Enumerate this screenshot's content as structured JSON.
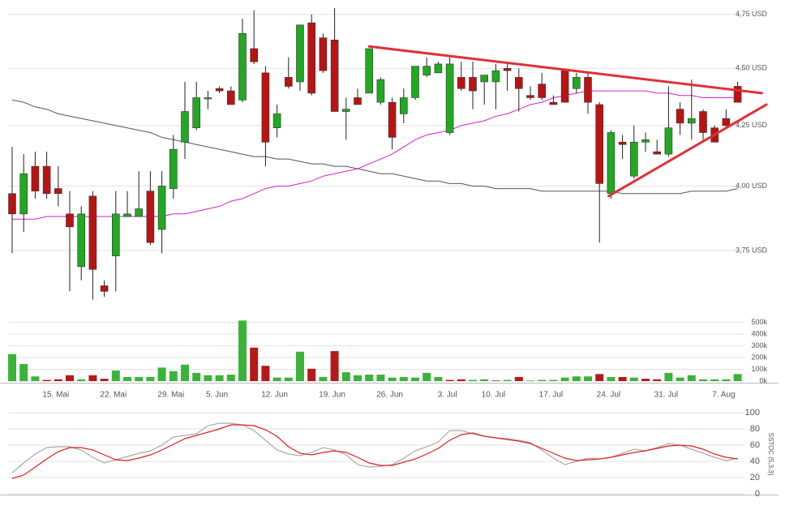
{
  "chart_data": [
    {
      "type": "candlestick",
      "log_scale": true,
      "grid": true,
      "ylim": [
        3.54,
        4.78
      ],
      "yticks": [
        {
          "value": 3.75,
          "label": "3,75 USD"
        },
        {
          "value": 4.0,
          "label": "4,00 USD"
        },
        {
          "value": 4.25,
          "label": "4,25 USD"
        },
        {
          "value": 4.5,
          "label": "4,50 USD"
        },
        {
          "value": 4.75,
          "label": "4,75 USD"
        }
      ],
      "up_color": "#22a822",
      "down_color": "#b81414",
      "open": [
        3.97,
        3.89,
        4.08,
        4.08,
        3.99,
        3.89,
        3.69,
        3.96,
        3.62,
        3.73,
        3.88,
        3.88,
        3.98,
        3.83,
        3.99,
        4.18,
        4.24,
        4.37,
        4.41,
        4.4,
        4.36,
        4.59,
        4.48,
        4.24,
        4.46,
        4.44,
        4.71,
        4.64,
        4.63,
        4.31,
        4.37,
        4.39,
        4.35,
        4.35,
        4.3,
        4.37,
        4.47,
        4.48,
        4.22,
        4.46,
        4.46,
        4.44,
        4.44,
        4.5,
        4.46,
        4.38,
        4.43,
        4.35,
        4.49,
        4.41,
        4.46,
        4.34,
        3.97,
        4.18,
        4.04,
        4.18,
        4.14,
        4.13,
        4.32,
        4.26,
        4.31,
        4.24,
        4.28,
        4.42
      ],
      "high": [
        4.16,
        4.13,
        4.14,
        4.14,
        4.08,
        3.98,
        3.92,
        3.98,
        3.64,
        3.98,
        3.98,
        4.06,
        4.06,
        4.06,
        4.21,
        4.44,
        4.44,
        4.4,
        4.42,
        4.42,
        4.73,
        4.77,
        4.51,
        4.34,
        4.55,
        4.7,
        4.75,
        4.66,
        4.78,
        4.37,
        4.41,
        4.59,
        4.46,
        4.37,
        4.41,
        4.51,
        4.55,
        4.53,
        4.55,
        4.53,
        4.53,
        4.47,
        4.52,
        4.52,
        4.5,
        4.42,
        4.48,
        4.38,
        4.5,
        4.48,
        4.48,
        4.35,
        4.23,
        4.21,
        4.25,
        4.22,
        4.19,
        4.42,
        4.35,
        4.45,
        4.32,
        4.25,
        4.32,
        4.44
      ],
      "low": [
        3.74,
        3.82,
        3.95,
        3.95,
        3.92,
        3.6,
        3.64,
        3.57,
        3.58,
        3.6,
        3.88,
        3.88,
        3.77,
        3.74,
        3.95,
        4.11,
        4.23,
        4.32,
        4.39,
        4.34,
        4.35,
        4.52,
        4.08,
        4.2,
        4.41,
        4.4,
        4.38,
        4.48,
        4.31,
        4.19,
        4.34,
        4.39,
        4.34,
        4.15,
        4.26,
        4.36,
        4.46,
        4.48,
        4.21,
        4.4,
        4.32,
        4.34,
        4.32,
        4.4,
        4.31,
        4.36,
        4.36,
        4.34,
        4.35,
        4.39,
        4.3,
        3.78,
        3.95,
        4.11,
        4.03,
        4.14,
        4.13,
        4.12,
        4.21,
        4.19,
        4.19,
        4.19,
        4.24,
        4.36
      ],
      "close": [
        3.89,
        4.05,
        3.98,
        3.97,
        3.97,
        3.84,
        3.89,
        3.68,
        3.6,
        3.89,
        3.89,
        3.91,
        3.78,
        4.0,
        4.15,
        4.31,
        4.37,
        4.37,
        4.4,
        4.34,
        4.66,
        4.53,
        4.18,
        4.3,
        4.42,
        4.7,
        4.39,
        4.49,
        4.31,
        4.32,
        4.34,
        4.59,
        4.45,
        4.2,
        4.37,
        4.51,
        4.51,
        4.52,
        4.52,
        4.41,
        4.4,
        4.47,
        4.49,
        4.49,
        4.41,
        4.37,
        4.37,
        4.34,
        4.35,
        4.46,
        4.35,
        4.01,
        4.22,
        4.17,
        4.18,
        4.19,
        4.13,
        4.24,
        4.26,
        4.28,
        4.22,
        4.18,
        4.25,
        4.35
      ],
      "series": [
        {
          "color": "#555555",
          "values": [
            4.36,
            4.35,
            4.33,
            4.32,
            4.3,
            4.29,
            4.28,
            4.27,
            4.26,
            4.25,
            4.24,
            4.23,
            4.22,
            4.2,
            4.19,
            4.18,
            4.17,
            4.16,
            4.15,
            4.14,
            4.13,
            4.12,
            4.12,
            4.11,
            4.11,
            4.1,
            4.09,
            4.09,
            4.08,
            4.08,
            4.07,
            4.06,
            4.05,
            4.05,
            4.04,
            4.03,
            4.02,
            4.02,
            4.01,
            4.01,
            4.0,
            4.0,
            3.99,
            3.99,
            3.99,
            3.99,
            3.98,
            3.98,
            3.98,
            3.98,
            3.98,
            3.98,
            3.98,
            3.97,
            3.97,
            3.97,
            3.97,
            3.97,
            3.97,
            3.98,
            3.98,
            3.98,
            3.98,
            3.99
          ]
        },
        {
          "color": "#d020d0",
          "values": [
            3.87,
            3.87,
            3.87,
            3.88,
            3.88,
            3.88,
            3.88,
            3.88,
            3.88,
            3.88,
            3.88,
            3.88,
            3.88,
            3.88,
            3.89,
            3.89,
            3.9,
            3.91,
            3.92,
            3.94,
            3.95,
            3.97,
            3.99,
            4.0,
            4.0,
            4.01,
            4.02,
            4.04,
            4.05,
            4.06,
            4.07,
            4.09,
            4.11,
            4.13,
            4.16,
            4.19,
            4.21,
            4.22,
            4.23,
            4.25,
            4.26,
            4.27,
            4.29,
            4.3,
            4.32,
            4.34,
            4.35,
            4.37,
            4.38,
            4.39,
            4.4,
            4.4,
            4.4,
            4.4,
            4.4,
            4.4,
            4.39,
            4.39,
            4.38,
            4.38,
            4.37,
            4.37,
            4.37,
            4.37
          ]
        }
      ],
      "trendlines": [
        {
          "color": "#e0303a",
          "x": [
            31,
            65.1
          ],
          "values": [
            4.6,
            4.39
          ]
        },
        {
          "color": "#e0303a",
          "x": [
            51.8,
            65.5
          ],
          "values": [
            3.96,
            4.34
          ]
        }
      ]
    },
    {
      "type": "bar",
      "grid": true,
      "categories": [
        null,
        null,
        null,
        null,
        "15. Mai",
        null,
        null,
        null,
        null,
        "22. Mai",
        null,
        null,
        null,
        null,
        "29. Mai",
        null,
        null,
        null,
        "5. Jun",
        null,
        null,
        null,
        null,
        "12. Jun",
        null,
        null,
        null,
        null,
        "19. Jun",
        null,
        null,
        null,
        null,
        "26. Jun",
        null,
        null,
        null,
        null,
        "3. Jul",
        null,
        null,
        null,
        "10. Jul",
        null,
        null,
        null,
        null,
        "17. Jul",
        null,
        null,
        null,
        null,
        "24. Jul",
        null,
        null,
        null,
        null,
        "31. Jul",
        null,
        null,
        null,
        null,
        "7. Aug",
        null
      ],
      "ylim": [
        0,
        600000
      ],
      "yticks": [
        {
          "value": 0,
          "label": "0k"
        },
        {
          "value": 100000,
          "label": "100k"
        },
        {
          "value": 200000,
          "label": "200k"
        },
        {
          "value": 300000,
          "label": "300k"
        },
        {
          "value": 400000,
          "label": "400k"
        },
        {
          "value": 500000,
          "label": "500k"
        }
      ],
      "values": [
        230000,
        145000,
        40000,
        10000,
        15000,
        50000,
        15000,
        50000,
        20000,
        90000,
        35000,
        35000,
        35000,
        115000,
        85000,
        140000,
        70000,
        50000,
        50000,
        55000,
        515000,
        285000,
        130000,
        30000,
        30000,
        250000,
        105000,
        35000,
        255000,
        75000,
        50000,
        55000,
        55000,
        30000,
        35000,
        30000,
        70000,
        35000,
        10000,
        15000,
        10000,
        15000,
        5000,
        10000,
        35000,
        5000,
        10000,
        10000,
        30000,
        40000,
        40000,
        60000,
        35000,
        35000,
        30000,
        20000,
        15000,
        70000,
        30000,
        50000,
        15000,
        15000,
        15000,
        60000
      ],
      "colors": [
        "#3bb33b",
        "#3bb33b",
        "#3bb33b",
        "#b41a1a",
        "#b41a1a",
        "#b41a1a",
        "#3bb33b",
        "#b41a1a",
        "#b41a1a",
        "#3bb33b",
        "#3bb33b",
        "#3bb33b",
        "#3bb33b",
        "#3bb33b",
        "#3bb33b",
        "#3bb33b",
        "#3bb33b",
        "#3bb33b",
        "#3bb33b",
        "#3bb33b",
        "#3bb33b",
        "#b41a1a",
        "#b41a1a",
        "#3bb33b",
        "#3bb33b",
        "#3bb33b",
        "#b41a1a",
        "#3bb33b",
        "#b41a1a",
        "#3bb33b",
        "#3bb33b",
        "#3bb33b",
        "#3bb33b",
        "#3bb33b",
        "#3bb33b",
        "#3bb33b",
        "#3bb33b",
        "#3bb33b",
        "#b41a1a",
        "#b41a1a",
        "#3bb33b",
        "#3bb33b",
        "#b41a1a",
        "#3bb33b",
        "#b41a1a",
        "#3bb33b",
        "#3bb33b",
        "#3bb33b",
        "#3bb33b",
        "#3bb33b",
        "#3bb33b",
        "#b41a1a",
        "#3bb33b",
        "#b41a1a",
        "#3bb33b",
        "#b41a1a",
        "#b41a1a",
        "#3bb33b",
        "#3bb33b",
        "#3bb33b",
        "#3bb33b",
        "#3bb33b",
        "#3bb33b",
        "#3bb33b"
      ]
    },
    {
      "type": "line",
      "grid": true,
      "ylabel": "SSTOC (5,3,3)",
      "ylim": [
        0,
        100
      ],
      "yticks": [
        0,
        20,
        40,
        60,
        80,
        100
      ],
      "series": [
        {
          "color": "#aaaaaa",
          "values": [
            26,
            38,
            49,
            57,
            58,
            58,
            54,
            45,
            38,
            42,
            46,
            50,
            53,
            60,
            70,
            72,
            74,
            84,
            87,
            87,
            85,
            78,
            66,
            54,
            49,
            47,
            51,
            57,
            54,
            48,
            36,
            33,
            34,
            36,
            44,
            53,
            58,
            64,
            78,
            78,
            74,
            71,
            69,
            68,
            66,
            63,
            54,
            44,
            36,
            40,
            44,
            43,
            45,
            50,
            55,
            53,
            57,
            62,
            60,
            55,
            50,
            45,
            41,
            44
          ]
        },
        {
          "color": "#e02020",
          "values": [
            19,
            23,
            33,
            43,
            52,
            57,
            57,
            54,
            48,
            42,
            41,
            44,
            48,
            54,
            61,
            68,
            72,
            76,
            80,
            85,
            85,
            84,
            79,
            71,
            58,
            50,
            48,
            51,
            53,
            51,
            45,
            38,
            35,
            35,
            39,
            43,
            49,
            56,
            66,
            73,
            75,
            71,
            69,
            67,
            65,
            62,
            56,
            50,
            44,
            41,
            42,
            43,
            45,
            48,
            51,
            53,
            56,
            59,
            60,
            59,
            55,
            49,
            45,
            43
          ]
        }
      ]
    }
  ]
}
